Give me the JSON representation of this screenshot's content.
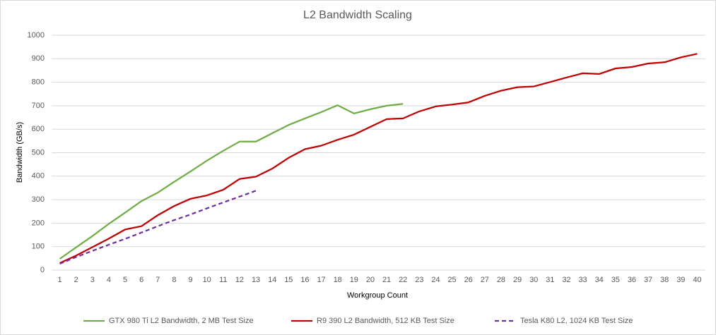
{
  "chart_data": {
    "type": "line",
    "title": "L2 Bandwidth Scaling",
    "x_label": "Workgroup Count",
    "y_label": "Bandwidth (GB/s)",
    "categories": [
      "1",
      "2",
      "3",
      "4",
      "5",
      "6",
      "7",
      "8",
      "9",
      "10",
      "11",
      "12",
      "13",
      "14",
      "15",
      "16",
      "17",
      "18",
      "19",
      "20",
      "21",
      "22",
      "23",
      "24",
      "25",
      "26",
      "27",
      "28",
      "29",
      "30",
      "31",
      "32",
      "33",
      "34",
      "35",
      "36",
      "37",
      "38",
      "39",
      "40"
    ],
    "series": [
      {
        "name": "GTX 980 Ti L2 Bandwidth, 2 MB Test Size",
        "color": "#70ad47",
        "style": "solid",
        "values": [
          48,
          97,
          145,
          197,
          245,
          294,
          330,
          376,
          420,
          466,
          508,
          547,
          547,
          583,
          618,
          646,
          673,
          702,
          667,
          685,
          700,
          708,
          null,
          null,
          null,
          null,
          null,
          null,
          null,
          null,
          null,
          null,
          null,
          null,
          null,
          null,
          null,
          null,
          null,
          null
        ]
      },
      {
        "name": "R9 390 L2 Bandwidth, 512 KB Test Size",
        "color": "#c00000",
        "style": "solid",
        "values": [
          30,
          62,
          98,
          134,
          173,
          187,
          234,
          273,
          304,
          318,
          342,
          388,
          398,
          432,
          478,
          515,
          530,
          555,
          577,
          610,
          643,
          646,
          676,
          697,
          705,
          714,
          742,
          764,
          779,
          782,
          801,
          820,
          838,
          835,
          859,
          865,
          880,
          885,
          906,
          921
        ]
      },
      {
        "name": "Tesla K80 L2, 1024 KB Test Size",
        "color": "#7030a0",
        "style": "dashed",
        "values": [
          27,
          56,
          82,
          108,
          133,
          160,
          187,
          213,
          237,
          263,
          288,
          313,
          338,
          null,
          null,
          null,
          null,
          null,
          null,
          null,
          null,
          null,
          null,
          null,
          null,
          null,
          null,
          null,
          null,
          null,
          null,
          null,
          null,
          null,
          null,
          null,
          null,
          null,
          null,
          null
        ]
      }
    ],
    "ylim": [
      0,
      1000
    ],
    "yticks": [
      0,
      100,
      200,
      300,
      400,
      500,
      600,
      700,
      800,
      900,
      1000
    ],
    "grid": true,
    "legend": "bottom"
  }
}
